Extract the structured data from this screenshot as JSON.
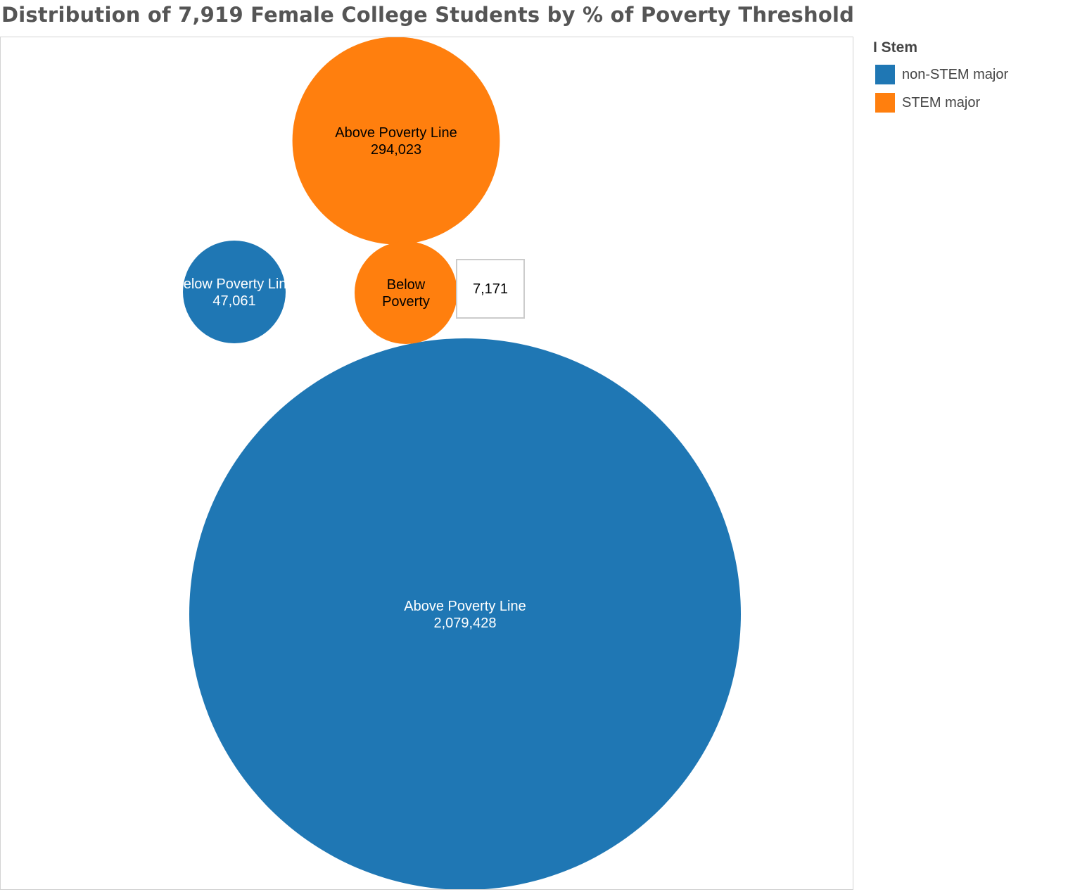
{
  "title": "Distribution of 7,919 Female College Students by % of Poverty Threshold",
  "legend": {
    "title": "I Stem",
    "items": [
      {
        "label": "non-STEM major",
        "color": "#1f77b4"
      },
      {
        "label": "STEM major",
        "color": "#ff7f0e"
      }
    ]
  },
  "chart_data": {
    "type": "bubble",
    "title": "Distribution of 7,919 Female College Students by % of Poverty Threshold",
    "legend_title": "I Stem",
    "legend_position": "right",
    "series": [
      {
        "name": "non-STEM major",
        "color": "#1f77b4"
      },
      {
        "name": "STEM major",
        "color": "#ff7f0e"
      }
    ],
    "bubbles": [
      {
        "series": "non-STEM major",
        "category": "Above Poverty Line",
        "label_lines": [
          "Above Poverty Line",
          "2,079,428"
        ],
        "value": 2079428,
        "label_color": "#ffffff"
      },
      {
        "series": "non-STEM major",
        "category": "Below Poverty Line",
        "label_lines": [
          "Below Poverty Line",
          "47,061"
        ],
        "value": 47061,
        "label_color": "#ffffff"
      },
      {
        "series": "STEM major",
        "category": "Above Poverty Line",
        "label_lines": [
          "Above Poverty Line",
          "294,023"
        ],
        "value": 294023,
        "label_color": "#000000"
      },
      {
        "series": "STEM major",
        "category": "Below Poverty Line",
        "label_lines": [
          "Below",
          "Poverty"
        ],
        "value": 7171,
        "label_color": "#000000"
      }
    ],
    "tooltip": {
      "text": "7,171"
    }
  }
}
